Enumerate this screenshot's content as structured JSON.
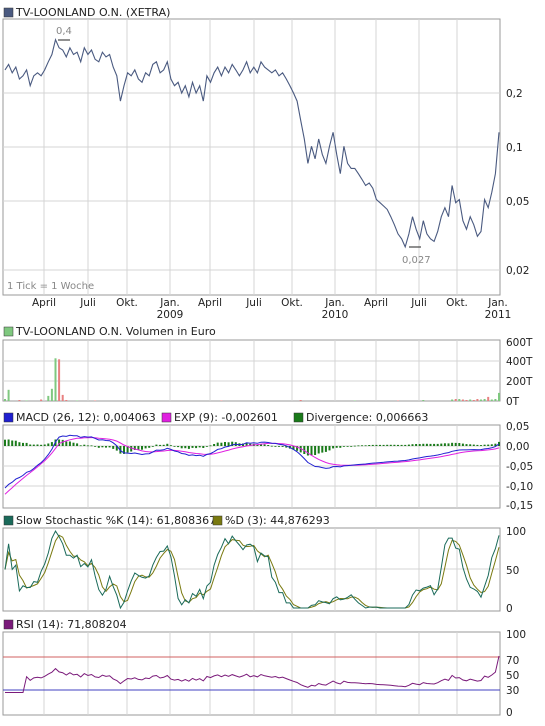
{
  "colors": {
    "price_line": "#4a5a80",
    "grid": "#d4d4d4",
    "frame": "#9a9a9a",
    "vol_up": "#7fc87f",
    "vol_down": "#e88080",
    "macd": "#2020d0",
    "exp": "#e020e0",
    "divergence": "#1a7a1a",
    "stoch_k": "#1a6a5a",
    "stoch_d": "#7a7a10",
    "rsi": "#7a1a7a",
    "rsi_70": "#d06060",
    "rsi_30": "#4040c0"
  },
  "price": {
    "title": "TV-LOONLAND O.N. (XETRA)",
    "note": "1 Tick = 1 Woche",
    "y_ticks": [
      "0,2",
      "0,1",
      "0,05",
      "0,02"
    ],
    "high_label": "0,4",
    "low_label": "0,027"
  },
  "x_axis": {
    "months": [
      "April",
      "Juli",
      "Okt.",
      "Jan.",
      "April",
      "Juli",
      "Okt.",
      "Jan.",
      "April",
      "Juli",
      "Okt.",
      "Jan."
    ],
    "years": [
      "2009",
      "2010",
      "2011"
    ]
  },
  "volume": {
    "title": "TV-LOONLAND O.N. Volumen in Euro",
    "y_ticks": [
      "600T",
      "400T",
      "200T",
      "0T"
    ]
  },
  "macd": {
    "legend": [
      "MACD (26, 12): 0,004063",
      "EXP (9): -0,002601",
      "Divergence: 0,006663"
    ],
    "y_ticks": [
      "0,05",
      "0,00",
      "-0,05",
      "-0,10",
      "-0,15"
    ]
  },
  "stoch": {
    "legend": [
      "Slow Stochastic %K (14): 61,808367",
      "%D (3): 44,876293"
    ],
    "y_ticks": [
      "100",
      "50",
      "0"
    ]
  },
  "rsi": {
    "legend": "RSI (14): 71,808204",
    "y_ticks": [
      "100",
      "70",
      "50",
      "30",
      "0"
    ]
  },
  "chart_data": [
    {
      "type": "line",
      "title": "TV-LOONLAND O.N. (XETRA)",
      "ylabel": "",
      "y_scale": "log",
      "ylim": [
        0.015,
        0.6
      ],
      "x_range": [
        "2008-02",
        "2011-01"
      ],
      "annotations": [
        {
          "label": "0,4",
          "value": 0.4
        },
        {
          "label": "0,027",
          "value": 0.027
        }
      ],
      "series": [
        {
          "values": [
            0.27,
            0.29,
            0.26,
            0.28,
            0.24,
            0.25,
            0.27,
            0.22,
            0.25,
            0.26,
            0.25,
            0.27,
            0.3,
            0.33,
            0.4,
            0.36,
            0.35,
            0.32,
            0.36,
            0.33,
            0.34,
            0.3,
            0.36,
            0.33,
            0.35,
            0.31,
            0.3,
            0.34,
            0.32,
            0.33,
            0.28,
            0.25,
            0.18,
            0.22,
            0.26,
            0.25,
            0.27,
            0.24,
            0.23,
            0.26,
            0.25,
            0.29,
            0.3,
            0.26,
            0.27,
            0.3,
            0.24,
            0.22,
            0.23,
            0.2,
            0.22,
            0.19,
            0.23,
            0.2,
            0.22,
            0.18,
            0.25,
            0.23,
            0.26,
            0.28,
            0.25,
            0.28,
            0.26,
            0.29,
            0.27,
            0.25,
            0.27,
            0.3,
            0.26,
            0.28,
            0.26,
            0.3,
            0.28,
            0.27,
            0.26,
            0.27,
            0.25,
            0.26,
            0.24,
            0.22,
            0.2,
            0.18,
            0.14,
            0.11,
            0.08,
            0.1,
            0.085,
            0.11,
            0.09,
            0.08,
            0.1,
            0.12,
            0.09,
            0.07,
            0.1,
            0.08,
            0.075,
            0.075,
            0.07,
            0.065,
            0.06,
            0.062,
            0.058,
            0.05,
            0.048,
            0.046,
            0.044,
            0.04,
            0.036,
            0.032,
            0.03,
            0.027,
            0.032,
            0.04,
            0.034,
            0.03,
            0.038,
            0.032,
            0.03,
            0.029,
            0.033,
            0.04,
            0.045,
            0.04,
            0.06,
            0.048,
            0.05,
            0.038,
            0.034,
            0.04,
            0.036,
            0.031,
            0.033,
            0.05,
            0.045,
            0.055,
            0.07,
            0.12
          ]
        }
      ]
    },
    {
      "type": "bar",
      "title": "TV-LOONLAND O.N. Volumen in Euro",
      "ylim": [
        0,
        600000
      ],
      "note": "weekly volume bars; values approximated",
      "values_thousands": [
        20,
        110,
        0,
        0,
        10,
        0,
        5,
        0,
        0,
        0,
        15,
        0,
        50,
        120,
        420,
        410,
        60,
        10,
        0,
        0,
        5,
        0,
        0,
        0,
        0,
        5,
        0,
        0,
        0,
        0,
        0,
        0,
        0,
        0,
        0,
        0,
        0,
        0,
        0,
        0,
        0,
        0,
        0,
        0,
        0,
        0,
        0,
        0,
        0,
        0,
        0,
        0,
        0,
        0,
        0,
        0,
        0,
        0,
        0,
        0,
        5,
        0,
        0,
        0,
        0,
        0,
        0,
        0,
        0,
        0,
        0,
        0,
        0,
        0,
        0,
        0,
        0,
        0,
        0,
        0,
        0,
        0,
        10,
        0,
        0,
        0,
        0,
        0,
        0,
        0,
        0,
        0,
        0,
        0,
        0,
        0,
        0,
        5,
        0,
        0,
        0,
        0,
        0,
        0,
        0,
        0,
        0,
        0,
        0,
        5,
        0,
        0,
        0,
        0,
        0,
        0,
        10,
        0,
        0,
        0,
        0,
        0,
        0,
        0,
        15,
        20,
        20,
        15,
        10,
        15,
        10,
        20,
        15,
        20,
        40,
        15,
        20,
        80
      ]
    },
    {
      "type": "line",
      "title": "MACD (26, 12)",
      "ylim": [
        -0.15,
        0.05
      ],
      "last_values": {
        "MACD": 0.004063,
        "EXP": -0.002601,
        "Divergence": 0.006663
      }
    },
    {
      "type": "line",
      "title": "Slow Stochastic %K (14)",
      "ylim": [
        0,
        100
      ],
      "last_values": {
        "K": 61.808367,
        "D": 44.876293
      }
    },
    {
      "type": "line",
      "title": "RSI (14)",
      "ylim": [
        0,
        100
      ],
      "reference_lines": [
        70,
        30
      ],
      "last_value": 71.808204
    }
  ]
}
